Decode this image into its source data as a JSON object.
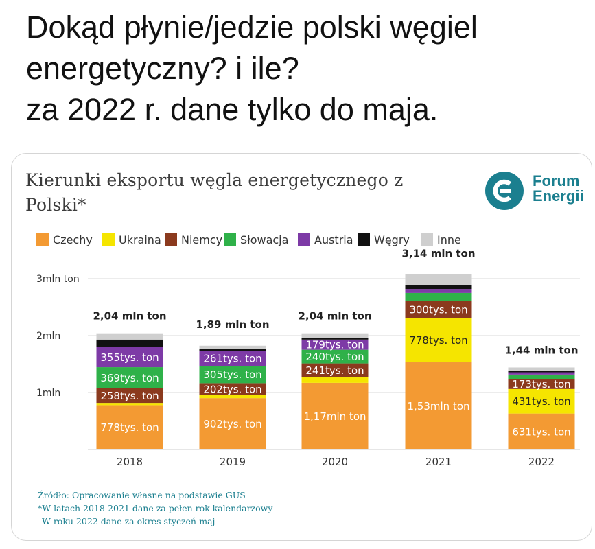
{
  "tweet": {
    "lines": [
      "Dokąd płynie/jedzie polski węgiel",
      "energetyczny? i ile?",
      "za 2022 r. dane tylko do maja."
    ]
  },
  "card": {
    "title_lines": [
      "Kierunki eksportu węgla energetycznego z",
      "Polski*"
    ],
    "logo": {
      "line1": "Forum",
      "line2": "Energii",
      "color": "#1b7f8f",
      "icon": "forum-energii-logo-icon"
    },
    "footnotes": [
      "Źródło: Opracowanie własne na podstawie GUS",
      "*W latach 2018-2021 dane za pełen rok kalendarzowy",
      "W roku 2022 dane za okres styczeń-maj"
    ]
  },
  "chart_data": {
    "type": "bar",
    "stacked": true,
    "title": "Kierunki eksportu węgla energetycznego z Polski*",
    "categories": [
      "2018",
      "2019",
      "2020",
      "2021",
      "2022"
    ],
    "yunit": "mln ton",
    "ylim": [
      0,
      3.14
    ],
    "yticks": [
      {
        "value": 1,
        "label": "1mln"
      },
      {
        "value": 2,
        "label": "2mln"
      },
      {
        "value": 3,
        "label": "3mln ton"
      }
    ],
    "grid": true,
    "legend_position": "top-left",
    "totals": [
      {
        "value": 2.04,
        "label": "2,04 mln ton"
      },
      {
        "value": 1.89,
        "label": "1,89 mln ton"
      },
      {
        "value": 2.04,
        "label": "2,04 mln ton"
      },
      {
        "value": 3.14,
        "label": "3,14 mln ton"
      },
      {
        "value": 1.44,
        "label": "1,44 mln ton"
      }
    ],
    "series": [
      {
        "name": "Czechy",
        "color": "#f39a33",
        "values": [
          0.778,
          0.902,
          1.17,
          1.53,
          0.631
        ],
        "labels": [
          "778tys. ton",
          "902tys. ton",
          "1,17mln ton",
          "1,53mln ton",
          "631tys. ton"
        ]
      },
      {
        "name": "Ukraina",
        "color": "#f5e500",
        "values": [
          0.04,
          0.06,
          0.1,
          0.778,
          0.431
        ],
        "labels": [
          "",
          "",
          "",
          "778tys. ton",
          "431tys. ton"
        ]
      },
      {
        "name": "Niemcy",
        "color": "#8b3a1e",
        "values": [
          0.258,
          0.202,
          0.241,
          0.3,
          0.173
        ],
        "labels": [
          "258tys. ton",
          "202tys. ton",
          "241tys. ton",
          "300tys. ton",
          "173tys. ton"
        ]
      },
      {
        "name": "Słowacja",
        "color": "#2fb149",
        "values": [
          0.369,
          0.305,
          0.24,
          0.14,
          0.08
        ],
        "labels": [
          "369tys. ton",
          "305tys. ton",
          "240tys. ton",
          "",
          ""
        ]
      },
      {
        "name": "Austria",
        "color": "#7d3aa6",
        "values": [
          0.355,
          0.261,
          0.179,
          0.07,
          0.04
        ],
        "labels": [
          "355tys. ton",
          "261tys. ton",
          "179tys. ton",
          "",
          ""
        ]
      },
      {
        "name": "Węgry",
        "color": "#111111",
        "values": [
          0.13,
          0.04,
          0.03,
          0.07,
          0.02
        ],
        "labels": [
          "",
          "",
          "",
          "",
          ""
        ]
      },
      {
        "name": "Inne",
        "color": "#cfcfcf",
        "values": [
          0.11,
          0.052,
          0.08,
          0.192,
          0.065
        ],
        "labels": [
          "",
          "",
          "",
          "",
          ""
        ]
      }
    ]
  }
}
